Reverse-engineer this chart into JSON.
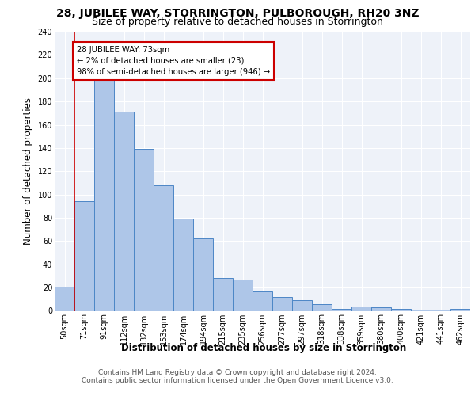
{
  "title": "28, JUBILEE WAY, STORRINGTON, PULBOROUGH, RH20 3NZ",
  "subtitle": "Size of property relative to detached houses in Storrington",
  "xlabel": "Distribution of detached houses by size in Storrington",
  "ylabel": "Number of detached properties",
  "categories": [
    "50sqm",
    "71sqm",
    "91sqm",
    "112sqm",
    "132sqm",
    "153sqm",
    "174sqm",
    "194sqm",
    "215sqm",
    "235sqm",
    "256sqm",
    "277sqm",
    "297sqm",
    "318sqm",
    "338sqm",
    "359sqm",
    "380sqm",
    "400sqm",
    "421sqm",
    "441sqm",
    "462sqm"
  ],
  "values": [
    21,
    94,
    201,
    171,
    139,
    108,
    79,
    62,
    28,
    27,
    17,
    12,
    9,
    6,
    2,
    4,
    3,
    2,
    1,
    1,
    2
  ],
  "bar_color": "#aec6e8",
  "bar_edge_color": "#4c86c6",
  "annotation_text": "28 JUBILEE WAY: 73sqm\n← 2% of detached houses are smaller (23)\n98% of semi-detached houses are larger (946) →",
  "annotation_box_color": "#ffffff",
  "annotation_box_edge_color": "#cc0000",
  "property_line_color": "#cc0000",
  "footer_line1": "Contains HM Land Registry data © Crown copyright and database right 2024.",
  "footer_line2": "Contains public sector information licensed under the Open Government Licence v3.0.",
  "ylim": [
    0,
    240
  ],
  "yticks": [
    0,
    20,
    40,
    60,
    80,
    100,
    120,
    140,
    160,
    180,
    200,
    220,
    240
  ],
  "plot_bg_color": "#eef2f9",
  "grid_color": "#ffffff",
  "title_fontsize": 10,
  "subtitle_fontsize": 9,
  "tick_fontsize": 7,
  "label_fontsize": 8.5,
  "footer_fontsize": 6.5
}
